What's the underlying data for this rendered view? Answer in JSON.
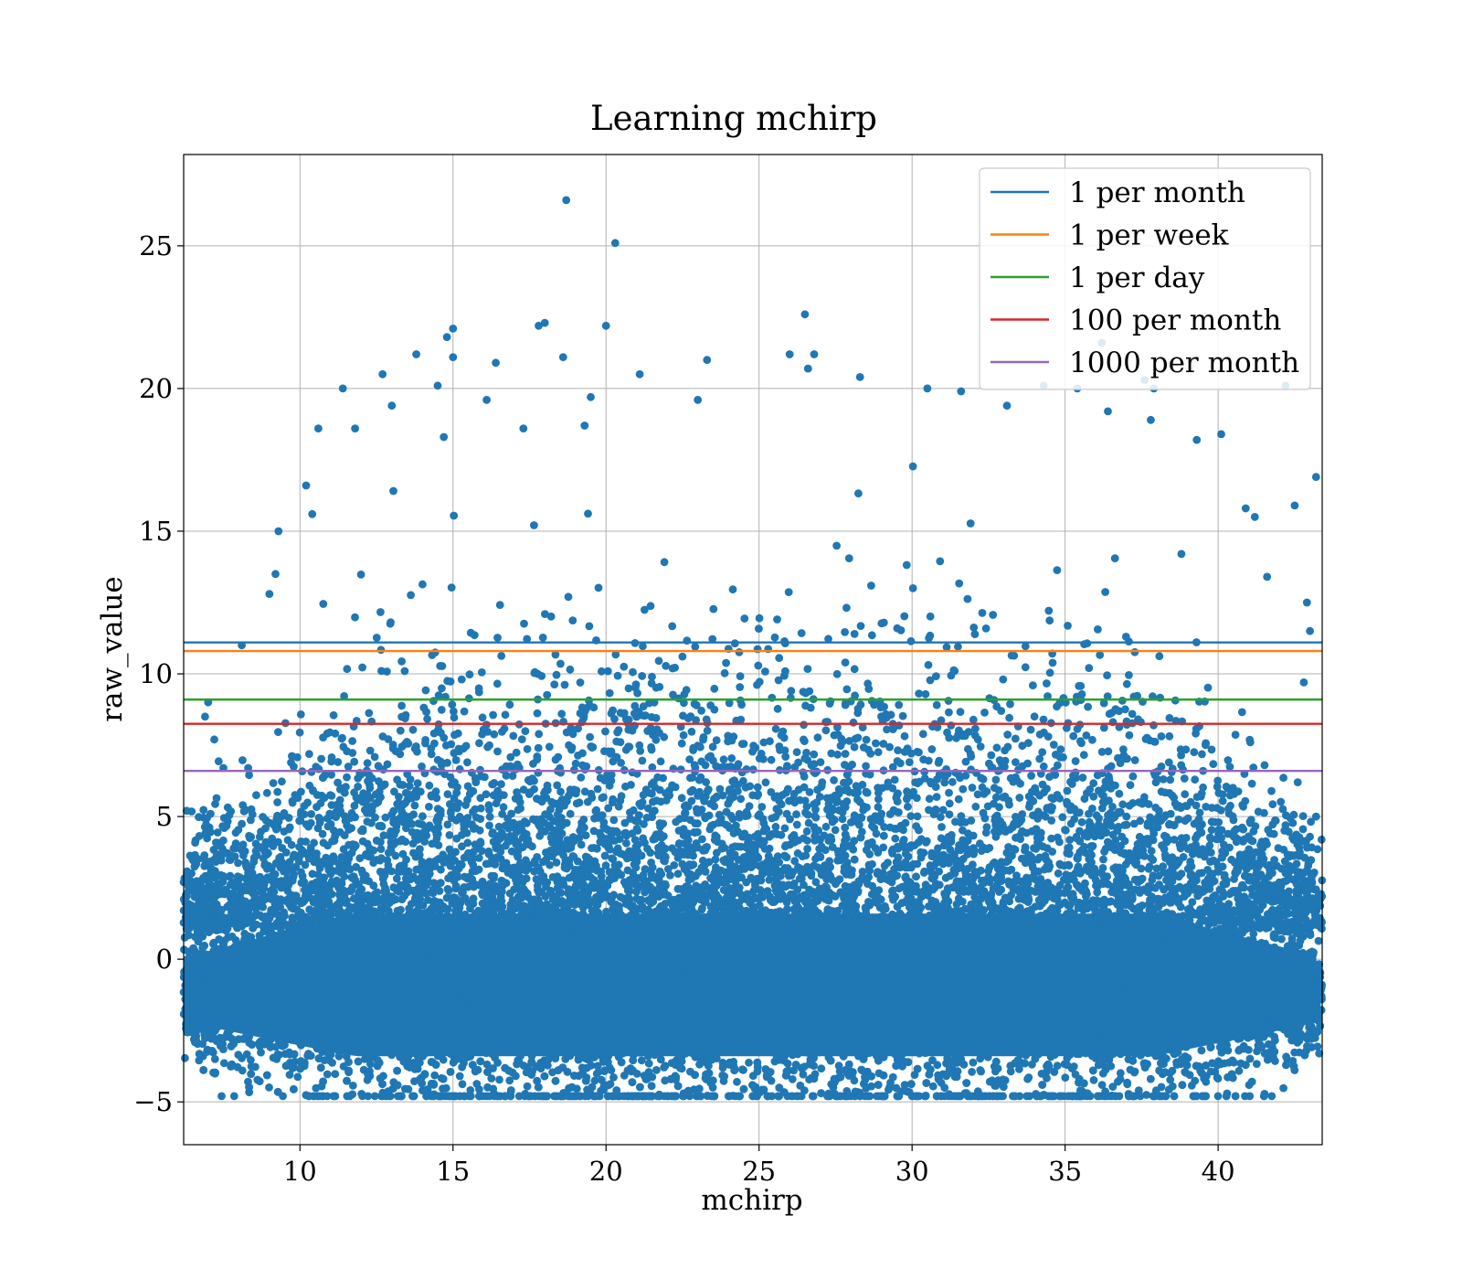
{
  "chart_data": {
    "type": "scatter",
    "title": "Learning mchirp",
    "xlabel": "mchirp",
    "ylabel": "raw_value",
    "xlim": [
      6.2,
      43.4
    ],
    "ylim": [
      -6.5,
      28.2
    ],
    "xticks": [
      10,
      15,
      20,
      25,
      30,
      35,
      40
    ],
    "yticks": [
      -5,
      0,
      5,
      10,
      15,
      20,
      25
    ],
    "xtick_labels": [
      "10",
      "15",
      "20",
      "25",
      "30",
      "35",
      "40"
    ],
    "ytick_labels": [
      "−5",
      "0",
      "5",
      "10",
      "15",
      "20",
      "25"
    ],
    "grid": true,
    "legend_position": "top-right",
    "scatter_color": "#1f77b4",
    "scatter_points": [
      [
        18.7,
        26.6
      ],
      [
        20.3,
        25.1
      ],
      [
        26.5,
        22.6
      ],
      [
        15.0,
        22.1
      ],
      [
        18.0,
        22.3
      ],
      [
        17.8,
        22.2
      ],
      [
        20.0,
        22.2
      ],
      [
        14.8,
        21.8
      ],
      [
        13.8,
        21.2
      ],
      [
        15.0,
        21.1
      ],
      [
        18.6,
        21.1
      ],
      [
        23.3,
        21.0
      ],
      [
        26.0,
        21.2
      ],
      [
        26.8,
        21.2
      ],
      [
        26.6,
        20.7
      ],
      [
        16.4,
        20.9
      ],
      [
        21.1,
        20.5
      ],
      [
        12.7,
        20.5
      ],
      [
        14.5,
        20.1
      ],
      [
        11.4,
        20.0
      ],
      [
        28.3,
        20.4
      ],
      [
        30.5,
        20.0
      ],
      [
        31.6,
        19.9
      ],
      [
        34.3,
        20.1
      ],
      [
        35.4,
        20.0
      ],
      [
        36.2,
        21.6
      ],
      [
        37.6,
        20.3
      ],
      [
        37.9,
        20.0
      ],
      [
        42.2,
        20.1
      ],
      [
        13.0,
        19.4
      ],
      [
        16.1,
        19.6
      ],
      [
        19.5,
        19.7
      ],
      [
        23.0,
        19.6
      ],
      [
        33.1,
        19.4
      ],
      [
        36.4,
        19.2
      ],
      [
        37.8,
        18.9
      ],
      [
        10.6,
        18.6
      ],
      [
        11.8,
        18.6
      ],
      [
        40.1,
        18.4
      ],
      [
        14.7,
        18.3
      ],
      [
        17.3,
        18.6
      ],
      [
        19.3,
        18.7
      ],
      [
        10.2,
        16.6
      ],
      [
        9.3,
        15.0
      ],
      [
        10.4,
        15.6
      ],
      [
        9.2,
        13.5
      ],
      [
        9.0,
        12.8
      ],
      [
        8.1,
        11.0
      ],
      [
        7.0,
        9.0
      ],
      [
        6.9,
        8.5
      ],
      [
        7.2,
        7.7
      ],
      [
        7.5,
        6.7
      ],
      [
        6.3,
        5.2
      ],
      [
        43.2,
        16.9
      ],
      [
        42.9,
        12.5
      ],
      [
        42.5,
        15.9
      ],
      [
        43.0,
        11.5
      ],
      [
        42.8,
        9.7
      ],
      [
        43.2,
        5.0
      ],
      [
        42.6,
        6.2
      ],
      [
        40.9,
        15.8
      ],
      [
        41.2,
        15.5
      ],
      [
        39.3,
        18.2
      ],
      [
        41.6,
        13.4
      ],
      [
        38.8,
        14.2
      ]
    ],
    "series": [
      {
        "name": "1 per month",
        "y": 11.1,
        "color": "#1f77b4"
      },
      {
        "name": "1 per week",
        "y": 10.8,
        "color": "#ff7f0e"
      },
      {
        "name": "1 per day",
        "y": 9.1,
        "color": "#2ca02c"
      },
      {
        "name": "100 per month",
        "y": 8.25,
        "color": "#d62728"
      },
      {
        "name": "1000 per month",
        "y": 6.6,
        "color": "#9467bd"
      }
    ]
  }
}
